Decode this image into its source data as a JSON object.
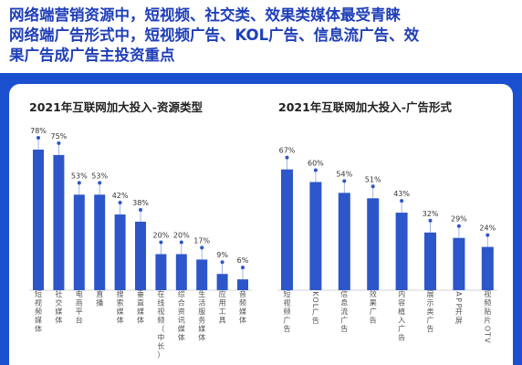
{
  "headline": {
    "line1": "网络端营销资源中，短视频、社交类、效果类媒体最受青睐",
    "line2": "网络端广告形式中，短视频广告、KOL广告、信息流广告、效",
    "line3": "果广告成广告主投资重点"
  },
  "colors": {
    "bar": "#2c56c9",
    "headline": "#1f3fb8",
    "band": "#1a4fcf",
    "label": "#555555"
  },
  "chart_data": [
    {
      "type": "bar",
      "title": "2021年互联网加大投入-资源类型",
      "categories": [
        "短视频媒体",
        "社交媒体",
        "电商平台",
        "直播",
        "搜索媒体",
        "垂直媒体",
        "在线视频（中长）",
        "综合资讯媒体",
        "生活服务媒体",
        "应用工具",
        "音频媒体"
      ],
      "values": [
        78,
        75,
        53,
        53,
        42,
        38,
        20,
        20,
        17,
        9,
        6
      ],
      "value_labels": [
        "78%",
        "75%",
        "53%",
        "53%",
        "42%",
        "38%",
        "20%",
        "20%",
        "17%",
        "9%",
        "6%"
      ],
      "ylim": [
        0,
        80
      ],
      "grid": false,
      "xlabel": "",
      "ylabel": ""
    },
    {
      "type": "bar",
      "title": "2021年互联网加大投入-广告形式",
      "categories": [
        "短视频广告",
        "KOL广告",
        "信息流广告",
        "效果广告",
        "内容植入广告",
        "展示类广告",
        "APP开屏",
        "视频贴片OTV"
      ],
      "values": [
        67,
        60,
        54,
        51,
        43,
        32,
        29,
        24
      ],
      "value_labels": [
        "67%",
        "60%",
        "54%",
        "51%",
        "43%",
        "32%",
        "29%",
        "24%"
      ],
      "ylim": [
        0,
        80
      ],
      "grid": false,
      "xlabel": "",
      "ylabel": ""
    }
  ]
}
